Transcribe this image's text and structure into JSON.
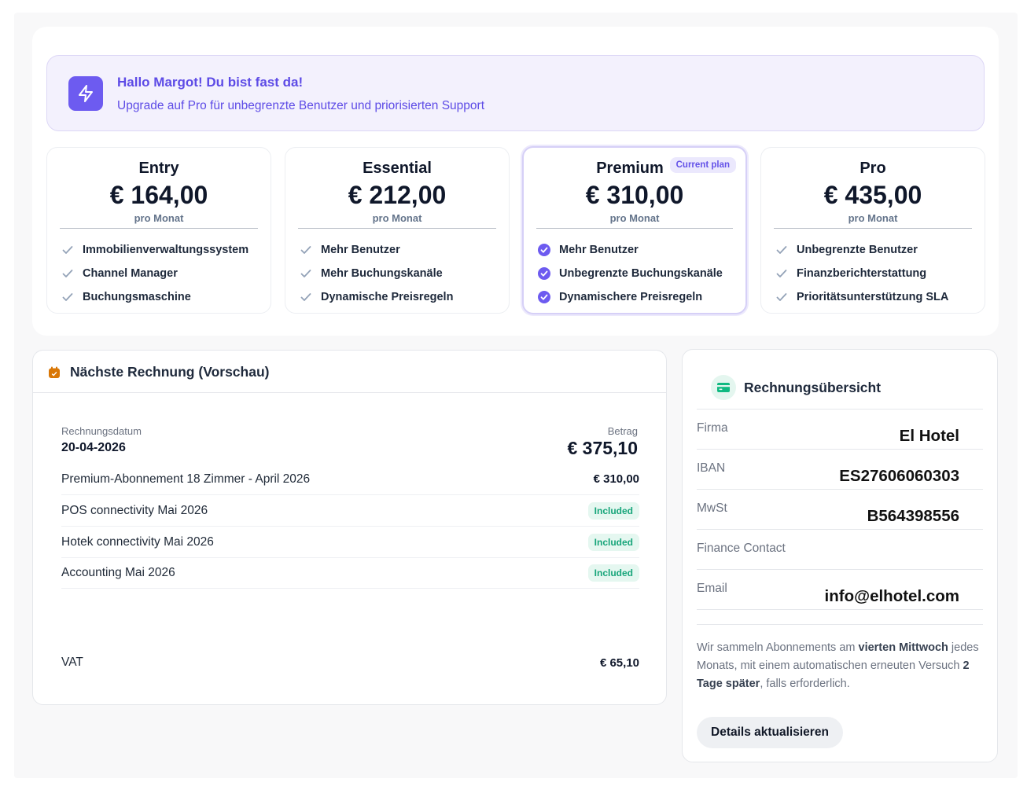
{
  "banner": {
    "title": "Hallo Margot! Du bist fast da!",
    "subtitle": "Upgrade auf Pro für unbegrenzte Benutzer und priorisierten Support",
    "icon": "lightning-icon"
  },
  "plans": [
    {
      "name": "Entry",
      "price": "€ 164,00",
      "period": "pro Monat",
      "features": [
        "Immobilienverwaltungssystem",
        "Channel Manager",
        "Buchungsmaschine"
      ]
    },
    {
      "name": "Essential",
      "price": "€ 212,00",
      "period": "pro Monat",
      "features": [
        "Mehr Benutzer",
        "Mehr Buchungskanäle",
        "Dynamische Preisregeln"
      ]
    },
    {
      "name": "Premium",
      "price": "€ 310,00",
      "period": "pro Monat",
      "badge": "Current plan",
      "features": [
        "Mehr Benutzer",
        "Unbegrenzte Buchungskanäle",
        "Dynamischere Preisregeln"
      ]
    },
    {
      "name": "Pro",
      "price": "€ 435,00",
      "period": "pro Monat",
      "features": [
        "Unbegrenzte Benutzer",
        "Finanzberichterstattung",
        "Prioritätsunterstützung SLA"
      ]
    }
  ],
  "invoice": {
    "title": "Nächste Rechnung (Vorschau)",
    "date_label": "Rechnungsdatum",
    "date": "20-04-2026",
    "amount_label": "Betrag",
    "amount": "€ 375,10",
    "lines": [
      {
        "label": "Premium-Abonnement 18 Zimmer - April 2026",
        "value": "€ 310,00"
      },
      {
        "label": "POS connectivity Mai 2026",
        "badge": "Included"
      },
      {
        "label": "Hotek connectivity Mai 2026",
        "badge": "Included"
      },
      {
        "label": "Accounting Mai 2026",
        "badge": "Included"
      }
    ],
    "vat_label": "VAT",
    "vat_value": "€ 65,10"
  },
  "summary": {
    "title": "Rechnungsübersicht",
    "rows": [
      {
        "label": "Firma",
        "value": "El Hotel"
      },
      {
        "label": "IBAN",
        "value": "ES27606060303"
      },
      {
        "label": "MwSt",
        "value": "B564398556"
      },
      {
        "label": "Finance Contact",
        "value": ""
      },
      {
        "label": "Email",
        "value": "info@elhotel.com"
      }
    ],
    "note": {
      "p1": "Wir sammeln Abonnements am ",
      "b1": "vierten Mittwoch",
      "p2": " jedes Monats, mit einem automatischen erneuten Versuch ",
      "b2": "2 Tage später",
      "p3": ", falls erforderlich."
    },
    "button": "Details aktualisieren"
  },
  "colors": {
    "accent": "#6d5bf0",
    "included": "#17a57a",
    "invoice_icon": "#d97706"
  }
}
